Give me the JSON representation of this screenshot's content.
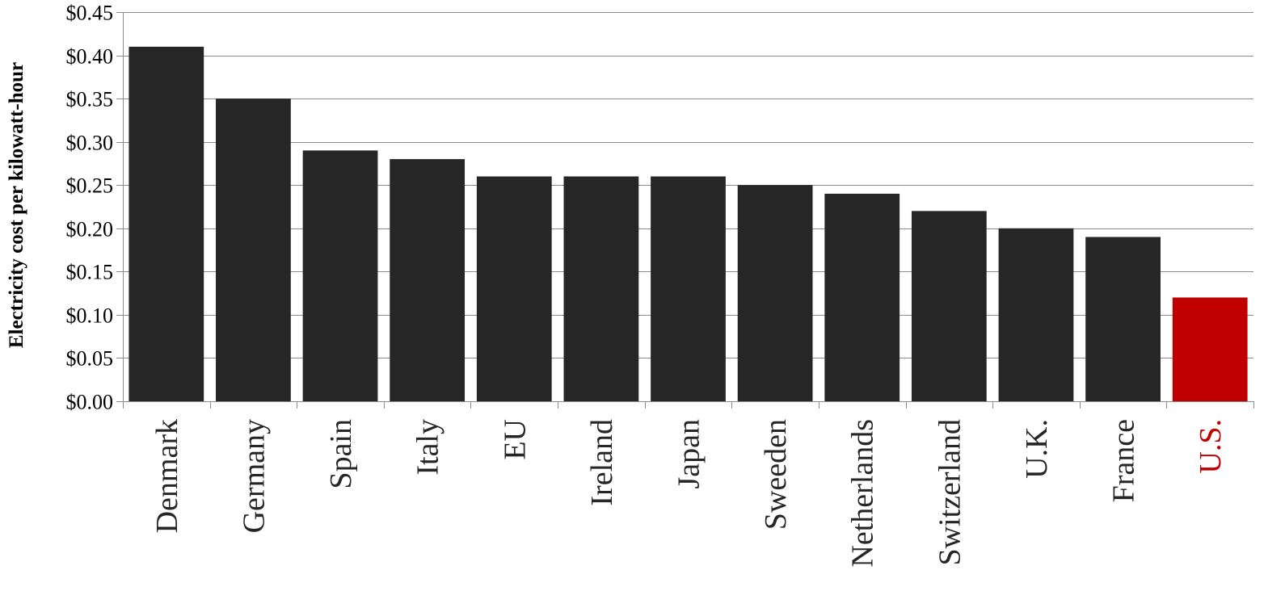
{
  "chart_data": {
    "type": "bar",
    "ylabel": "Electricity cost per kilowatt-hour",
    "ylim": [
      0,
      0.45
    ],
    "ytick_step": 0.05,
    "ytick_labels": [
      "$0.00",
      "$0.05",
      "$0.10",
      "$0.15",
      "$0.20",
      "$0.25",
      "$0.30",
      "$0.35",
      "$0.40",
      "$0.45"
    ],
    "grid": true,
    "categories": [
      "Denmark",
      "Germany",
      "Spain",
      "Italy",
      "EU",
      "Ireland",
      "Japan",
      "Sweeden",
      "Netherlands",
      "Switzerland",
      "U.K.",
      "France",
      "U.S."
    ],
    "values": [
      0.41,
      0.35,
      0.29,
      0.28,
      0.26,
      0.26,
      0.26,
      0.25,
      0.24,
      0.22,
      0.2,
      0.19,
      0.12
    ],
    "bar_color": "#262626",
    "highlight": {
      "category": "U.S.",
      "color": "#C00000"
    }
  }
}
